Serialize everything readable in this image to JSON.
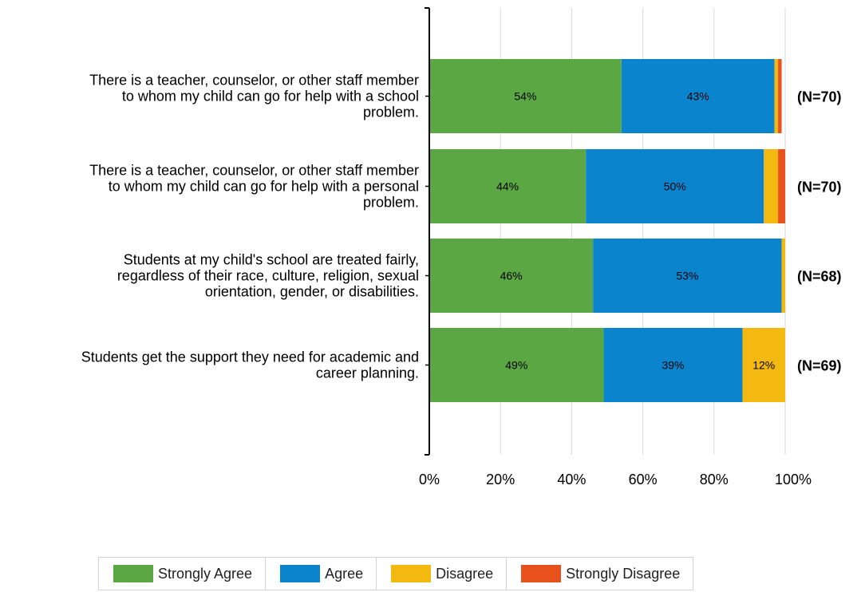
{
  "chart_data": {
    "type": "bar",
    "orientation": "horizontal",
    "stacked": true,
    "categories": [
      [
        "There is a teacher, counselor, or other staff member",
        "to whom my child can go for help with a school",
        "problem."
      ],
      [
        "There is a teacher, counselor, or other staff member",
        "to whom my child can go for help with a personal",
        "problem."
      ],
      [
        "Students at my child's school are treated fairly,",
        "regardless of their race, culture, religion, sexual",
        "orientation, gender, or disabilities."
      ],
      [
        "Students get the support they need for academic and",
        "career planning."
      ]
    ],
    "n_labels": [
      "(N=70)",
      "(N=70)",
      "(N=68)",
      "(N=69)"
    ],
    "series": [
      {
        "name": "Strongly Agree",
        "color": "#5ba744",
        "values": [
          54,
          44,
          46,
          49
        ],
        "labels": [
          "54%",
          "44%",
          "46%",
          "49%"
        ]
      },
      {
        "name": "Agree",
        "color": "#0b84ce",
        "values": [
          43,
          50,
          53,
          39
        ],
        "labels": [
          "43%",
          "50%",
          "53%",
          "39%"
        ]
      },
      {
        "name": "Disagree",
        "color": "#f4b910",
        "values": [
          1,
          4,
          1,
          12
        ],
        "labels": [
          "",
          "",
          "",
          "12%"
        ]
      },
      {
        "name": "Strongly Disagree",
        "color": "#e8501c",
        "values": [
          1,
          2,
          0,
          0
        ],
        "labels": [
          "",
          "",
          "",
          ""
        ]
      }
    ],
    "xlim": [
      0,
      100
    ],
    "xticks": [
      "0%",
      "20%",
      "40%",
      "60%",
      "80%",
      "100%"
    ],
    "grid": true,
    "legend_position": "bottom"
  }
}
